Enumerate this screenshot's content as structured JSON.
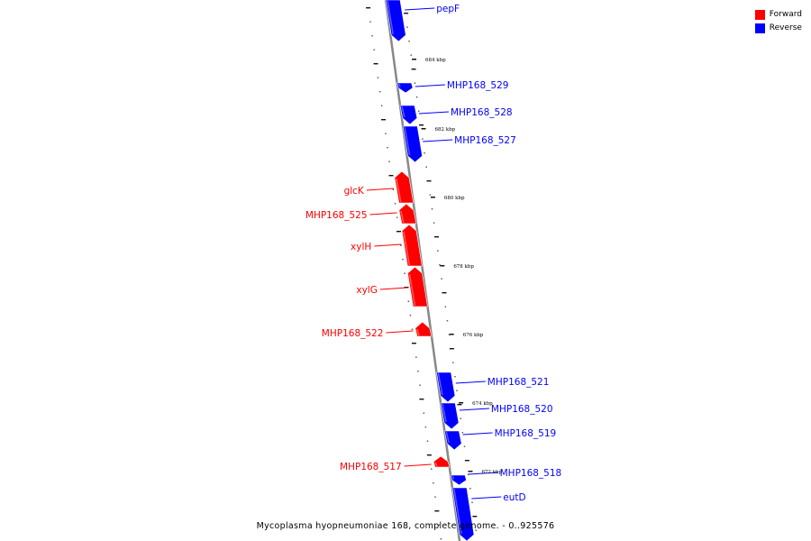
{
  "colors": {
    "forward": "#ff0000",
    "reverse": "#0000ff",
    "axis": "#888888"
  },
  "legend": [
    {
      "label": "Forward",
      "color": "#ff0000"
    },
    {
      "label": "Reverse",
      "color": "#0000ff"
    }
  ],
  "caption": "Mycoplasma hyopneumoniae 168, complete genome. - 0..925576",
  "ticks": [
    "684 kbp",
    "682 kbp",
    "680 kbp",
    "678 kbp",
    "676 kbp",
    "674 kbp",
    "672 kbp"
  ],
  "genes": [
    {
      "name": "pepF",
      "strand": "reverse"
    },
    {
      "name": "MHP168_529",
      "strand": "reverse"
    },
    {
      "name": "MHP168_528",
      "strand": "reverse"
    },
    {
      "name": "MHP168_527",
      "strand": "reverse"
    },
    {
      "name": "glcK",
      "strand": "forward"
    },
    {
      "name": "MHP168_525",
      "strand": "forward"
    },
    {
      "name": "xylH",
      "strand": "forward"
    },
    {
      "name": "xylG",
      "strand": "forward"
    },
    {
      "name": "MHP168_522",
      "strand": "forward"
    },
    {
      "name": "MHP168_521",
      "strand": "reverse"
    },
    {
      "name": "MHP168_520",
      "strand": "reverse"
    },
    {
      "name": "MHP168_519",
      "strand": "reverse"
    },
    {
      "name": "MHP168_517",
      "strand": "forward"
    },
    {
      "name": "MHP168_518",
      "strand": "reverse"
    },
    {
      "name": "eutD",
      "strand": "reverse"
    }
  ]
}
